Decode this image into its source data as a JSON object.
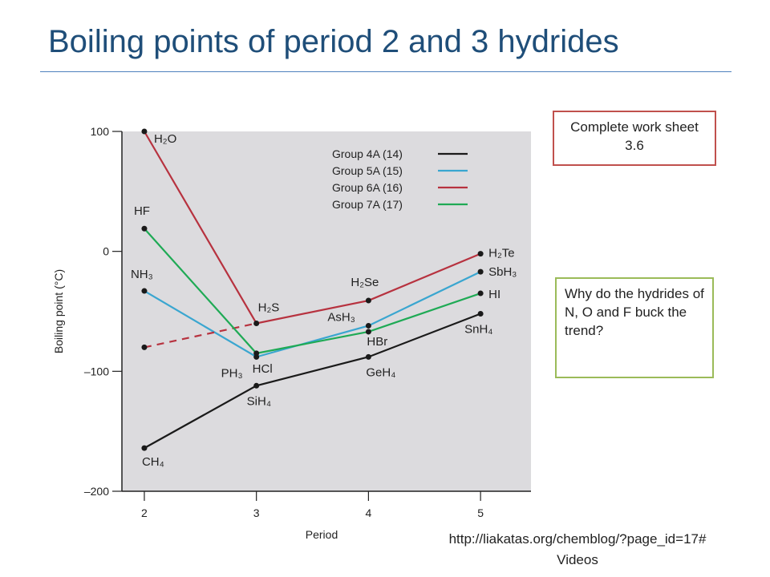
{
  "slide": {
    "title": "Boiling points of period 2 and 3 hydrides"
  },
  "notes": {
    "work": "Complete work sheet 3.6",
    "why": "Why do the hydrides of N, O and F buck the trend?"
  },
  "source": {
    "url": "http://liakatas.org/chemblog/?page_id=17#",
    "url_suffix": "Videos"
  },
  "chart_data": {
    "type": "line",
    "title": "",
    "xlabel": "Period",
    "ylabel": "Boiling point (°C)",
    "x": [
      2,
      3,
      4,
      5
    ],
    "xlim": [
      1.8,
      5.45
    ],
    "ylim": [
      -200,
      100
    ],
    "x_ticks": [
      "2",
      "3",
      "4",
      "5"
    ],
    "y_ticks": [
      {
        "value": 100,
        "label": "100"
      },
      {
        "value": 0,
        "label": "0"
      },
      {
        "value": -100,
        "label": "–100"
      },
      {
        "value": -200,
        "label": "–200"
      }
    ],
    "background": "#dcdbde",
    "legend_position": "top-right",
    "series": [
      {
        "name": "Group 4A (14)",
        "color": "#1a1a1a",
        "values": [
          -164,
          -112,
          -88,
          -52
        ],
        "compounds": [
          "CH₄",
          "SiH₄",
          "GeH₄",
          "SnH₄"
        ]
      },
      {
        "name": "Group 5A (15)",
        "color": "#3aa6d0",
        "values": [
          -33,
          -88,
          -62,
          -17
        ],
        "compounds": [
          "NH₃",
          "PH₃",
          "AsH₃",
          "SbH₃"
        ]
      },
      {
        "name": "Group 6A (16)",
        "color": "#b7323f",
        "values": [
          100,
          -60,
          -41,
          -2
        ],
        "compounds": [
          "H₂O",
          "H₂S",
          "H₂Se",
          "H₂Te"
        ],
        "extrapolated_value_period_2": -80
      },
      {
        "name": "Group 7A (17)",
        "color": "#1faa55",
        "values": [
          19,
          -85,
          -67,
          -35
        ],
        "compounds": [
          "HF",
          "HCl",
          "HBr",
          "HI"
        ]
      }
    ]
  }
}
